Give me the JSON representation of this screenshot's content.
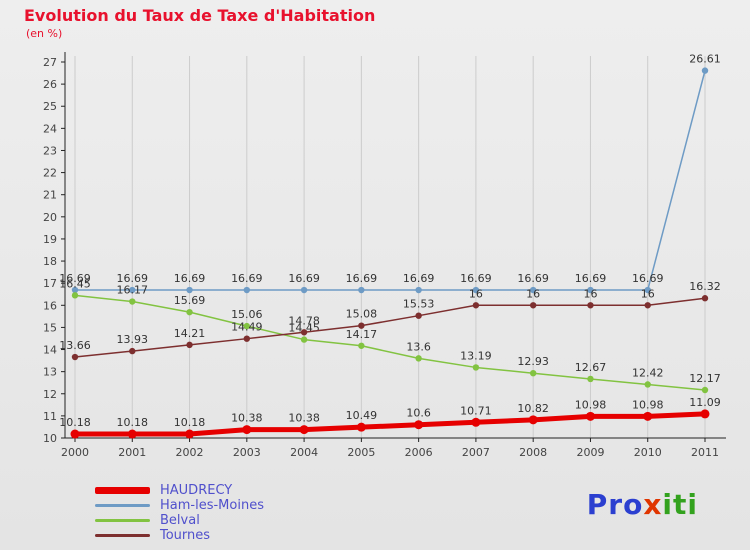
{
  "title": "Evolution du Taux de Taxe d'Habitation",
  "subtitle": "(en %)",
  "title_color": "#e8112d",
  "logo": {
    "parts": [
      {
        "text": "Pro",
        "color": "#2b3fd0"
      },
      {
        "text": "x",
        "color": "#e03500"
      },
      {
        "text": "iti",
        "color": "#33a21e"
      }
    ]
  },
  "chart_data": {
    "type": "line",
    "title": "Evolution du Taux de Taxe d'Habitation",
    "subtitle": "(en %)",
    "x": [
      2000,
      2001,
      2002,
      2003,
      2004,
      2005,
      2006,
      2007,
      2008,
      2009,
      2010,
      2011
    ],
    "xlabel": "",
    "ylabel": "",
    "ylim": [
      10,
      27
    ],
    "ytick_step": 1,
    "grid": "vertical-only",
    "legend_position": "bottom-left",
    "series": [
      {
        "name": "HAUDRECY",
        "color": "#e60000",
        "line_width": 5,
        "values": [
          10.18,
          10.18,
          10.18,
          10.38,
          10.38,
          10.49,
          10.6,
          10.71,
          10.82,
          10.98,
          10.98,
          11.09
        ]
      },
      {
        "name": "Ham-les-Moines",
        "color": "#6e9bc5",
        "line_width": 1.5,
        "values": [
          16.69,
          16.69,
          16.69,
          16.69,
          16.69,
          16.69,
          16.69,
          16.69,
          16.69,
          16.69,
          16.69,
          26.61
        ]
      },
      {
        "name": "Belval",
        "color": "#82c341",
        "line_width": 1.5,
        "values": [
          16.45,
          16.17,
          15.69,
          15.06,
          14.45,
          14.17,
          13.6,
          13.19,
          12.93,
          12.67,
          12.42,
          12.17
        ]
      },
      {
        "name": "Tournes",
        "color": "#7d2f2f",
        "line_width": 1.5,
        "values": [
          13.66,
          13.93,
          14.21,
          14.49,
          14.78,
          15.08,
          15.53,
          16,
          16,
          16,
          16,
          16.32
        ]
      }
    ]
  }
}
